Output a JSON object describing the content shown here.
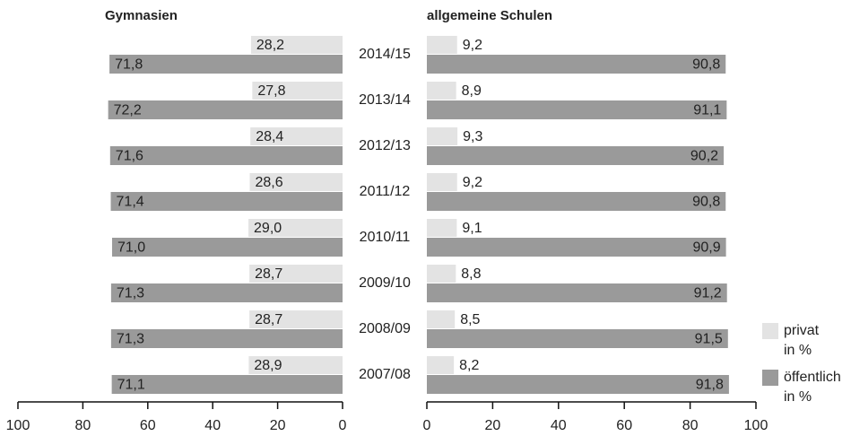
{
  "chart_data": [
    {
      "type": "bar",
      "orientation": "horizontal",
      "title": "Gymnasien",
      "categories": [
        "2014/15",
        "2013/14",
        "2012/13",
        "2011/12",
        "2010/11",
        "2009/10",
        "2008/09",
        "2007/08"
      ],
      "xlim": [
        100,
        0
      ],
      "xticks": [
        100,
        80,
        60,
        40,
        20,
        0
      ],
      "series": [
        {
          "name": "privat in %",
          "color": "#e3e3e3",
          "values": [
            28.2,
            27.8,
            28.4,
            28.6,
            29.0,
            28.7,
            28.7,
            28.9
          ],
          "value_labels": [
            "28,2",
            "27,8",
            "28,4",
            "28,6",
            "29,0",
            "28,7",
            "28,7",
            "28,9"
          ]
        },
        {
          "name": "öffentlich in %",
          "color": "#9a9a9a",
          "values": [
            71.8,
            72.2,
            71.6,
            71.4,
            71.0,
            71.3,
            71.3,
            71.1
          ],
          "value_labels": [
            "71,8",
            "72,2",
            "71,6",
            "71,4",
            "71,0",
            "71,3",
            "71,3",
            "71,1"
          ]
        }
      ]
    },
    {
      "type": "bar",
      "orientation": "horizontal",
      "title": "allgemeine Schulen",
      "xlim": [
        0,
        100
      ],
      "xticks": [
        0,
        20,
        40,
        60,
        80,
        100
      ],
      "series": [
        {
          "color": "#e3e3e3",
          "values": [
            9.2,
            8.9,
            9.3,
            9.2,
            9.1,
            8.8,
            8.5,
            8.2
          ],
          "value_labels": [
            "9,2",
            "8,9",
            "9,3",
            "9,2",
            "9,1",
            "8,8",
            "8,5",
            "8,2"
          ]
        },
        {
          "color": "#9a9a9a",
          "values": [
            90.8,
            91.1,
            90.2,
            90.8,
            90.9,
            91.2,
            91.5,
            91.8
          ],
          "value_labels": [
            "90,8",
            "91,1",
            "90,2",
            "90,8",
            "90,9",
            "91,2",
            "91,5",
            "91,8"
          ]
        }
      ]
    }
  ]
}
